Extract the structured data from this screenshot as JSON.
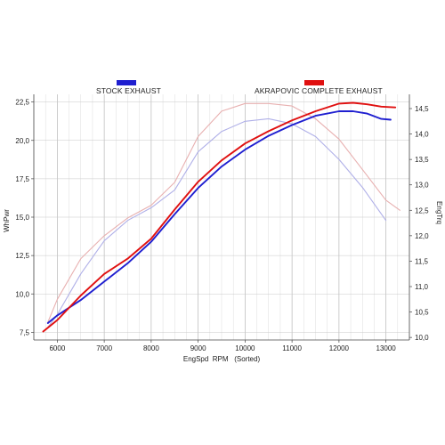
{
  "chart_data": {
    "type": "line",
    "xlabel": "EngSpd  RPM   (Sorted)",
    "ylabel_left": "WhPwr",
    "ylabel_right": "EngTrq",
    "x_ticks": [
      "6000",
      "7000",
      "8000",
      "9000",
      "10000",
      "11000",
      "12000",
      "13000"
    ],
    "y_left_ticks": [
      "7,5",
      "10,0",
      "12,5",
      "15,0",
      "17,5",
      "20,0",
      "22,5"
    ],
    "y_right_ticks": [
      "10,0",
      "10,5",
      "11,0",
      "11,5",
      "12,0",
      "12,5",
      "13,0",
      "13,5",
      "14,0",
      "14,5"
    ],
    "xlim": [
      5500,
      13500
    ],
    "ylim_left": [
      7.0,
      23.0
    ],
    "ylim_right": [
      9.95,
      14.78
    ],
    "grid": true,
    "legend_position": "top",
    "series": [
      {
        "name": "STOCK EXHAUST",
        "metric": "power",
        "axis": "left",
        "color": "#1f1fd0",
        "style": "solid",
        "x": [
          5800,
          6000,
          6500,
          7000,
          7500,
          8000,
          8500,
          9000,
          9500,
          10000,
          10500,
          11000,
          11500,
          12000,
          12300,
          12600,
          12900,
          13100
        ],
        "y": [
          8.1,
          8.6,
          9.6,
          10.8,
          12.0,
          13.4,
          15.2,
          16.9,
          18.3,
          19.4,
          20.3,
          21.0,
          21.6,
          21.9,
          21.9,
          21.75,
          21.4,
          21.35
        ]
      },
      {
        "name": "AKRAPOVIC COMPLETE EXHAUST",
        "metric": "power",
        "axis": "left",
        "color": "#e01010",
        "style": "solid",
        "x": [
          5700,
          6000,
          6500,
          7000,
          7500,
          8000,
          8500,
          9000,
          9500,
          10000,
          10500,
          11000,
          11500,
          12000,
          12300,
          12600,
          12900,
          13200
        ],
        "y": [
          7.55,
          8.3,
          9.9,
          11.3,
          12.3,
          13.6,
          15.5,
          17.3,
          18.7,
          19.8,
          20.6,
          21.3,
          21.9,
          22.4,
          22.45,
          22.35,
          22.2,
          22.15
        ]
      },
      {
        "name": "STOCK EXHAUST",
        "metric": "torque",
        "axis": "right",
        "color": "#b0b0e8",
        "style": "thin",
        "x": [
          5800,
          6000,
          6500,
          7000,
          7500,
          8000,
          8500,
          9000,
          9500,
          10000,
          10500,
          11000,
          11500,
          12000,
          12500,
          13000
        ],
        "y": [
          10.2,
          10.45,
          11.25,
          11.9,
          12.3,
          12.55,
          12.9,
          13.65,
          14.05,
          14.25,
          14.3,
          14.2,
          13.95,
          13.5,
          12.95,
          12.3
        ]
      },
      {
        "name": "AKRAPOVIC COMPLETE EXHAUST",
        "metric": "torque",
        "axis": "right",
        "color": "#e8b0b0",
        "style": "thin",
        "x": [
          5800,
          6000,
          6500,
          7000,
          7500,
          8000,
          8500,
          9000,
          9500,
          10000,
          10500,
          11000,
          11500,
          12000,
          12500,
          13000,
          13300
        ],
        "y": [
          10.3,
          10.75,
          11.55,
          12.0,
          12.35,
          12.6,
          13.05,
          13.95,
          14.45,
          14.6,
          14.6,
          14.55,
          14.3,
          13.9,
          13.3,
          12.7,
          12.5
        ]
      }
    ]
  }
}
